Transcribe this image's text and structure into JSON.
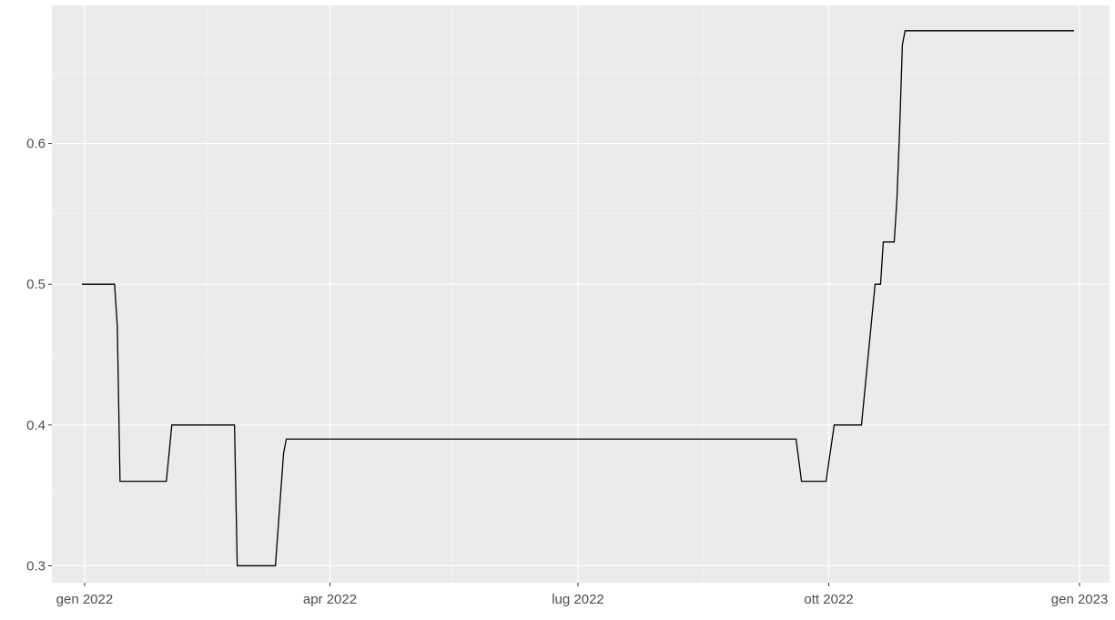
{
  "chart_data": {
    "type": "line",
    "title": "",
    "xlabel": "",
    "ylabel": "",
    "x_axis": {
      "kind": "date",
      "range": [
        "2021-12-20",
        "2023-01-12"
      ],
      "ticks": [
        {
          "date": "2022-01-01",
          "label": "gen 2022"
        },
        {
          "date": "2022-04-01",
          "label": "apr 2022"
        },
        {
          "date": "2022-07-01",
          "label": "lug 2022"
        },
        {
          "date": "2022-10-01",
          "label": "ott 2022"
        },
        {
          "date": "2023-01-01",
          "label": "gen 2023"
        }
      ],
      "minor_ticks": [
        "2022-02-15",
        "2022-05-16",
        "2022-08-16",
        "2022-11-16"
      ]
    },
    "y_axis": {
      "range": [
        0.288,
        0.698
      ],
      "ticks": [
        {
          "value": 0.3,
          "label": "0.3"
        },
        {
          "value": 0.4,
          "label": "0.4"
        },
        {
          "value": 0.5,
          "label": "0.5"
        },
        {
          "value": 0.6,
          "label": "0.6"
        }
      ],
      "minor_ticks": [
        0.35,
        0.45,
        0.55,
        0.65
      ]
    },
    "grid": true,
    "series": [
      {
        "color": "#000000",
        "points": [
          {
            "x": "2021-12-31",
            "y": 0.5
          },
          {
            "x": "2022-01-12",
            "y": 0.5
          },
          {
            "x": "2022-01-13",
            "y": 0.47
          },
          {
            "x": "2022-01-14",
            "y": 0.36
          },
          {
            "x": "2022-01-31",
            "y": 0.36
          },
          {
            "x": "2022-02-02",
            "y": 0.4
          },
          {
            "x": "2022-02-25",
            "y": 0.4
          },
          {
            "x": "2022-02-26",
            "y": 0.3
          },
          {
            "x": "2022-03-12",
            "y": 0.3
          },
          {
            "x": "2022-03-15",
            "y": 0.38
          },
          {
            "x": "2022-03-16",
            "y": 0.39
          },
          {
            "x": "2022-09-19",
            "y": 0.39
          },
          {
            "x": "2022-09-21",
            "y": 0.36
          },
          {
            "x": "2022-09-30",
            "y": 0.36
          },
          {
            "x": "2022-10-03",
            "y": 0.4
          },
          {
            "x": "2022-10-13",
            "y": 0.4
          },
          {
            "x": "2022-10-17",
            "y": 0.48
          },
          {
            "x": "2022-10-18",
            "y": 0.5
          },
          {
            "x": "2022-10-20",
            "y": 0.5
          },
          {
            "x": "2022-10-21",
            "y": 0.53
          },
          {
            "x": "2022-10-25",
            "y": 0.53
          },
          {
            "x": "2022-10-26",
            "y": 0.56
          },
          {
            "x": "2022-10-27",
            "y": 0.61
          },
          {
            "x": "2022-10-28",
            "y": 0.67
          },
          {
            "x": "2022-10-29",
            "y": 0.68
          },
          {
            "x": "2022-12-30",
            "y": 0.68
          }
        ]
      }
    ]
  },
  "colors": {
    "panel": "#ebebeb",
    "grid_major": "#ffffff",
    "grid_minor": "#f5f5f5",
    "axis_text": "#4d4d4d",
    "tick": "#333333",
    "line": "#000000"
  }
}
